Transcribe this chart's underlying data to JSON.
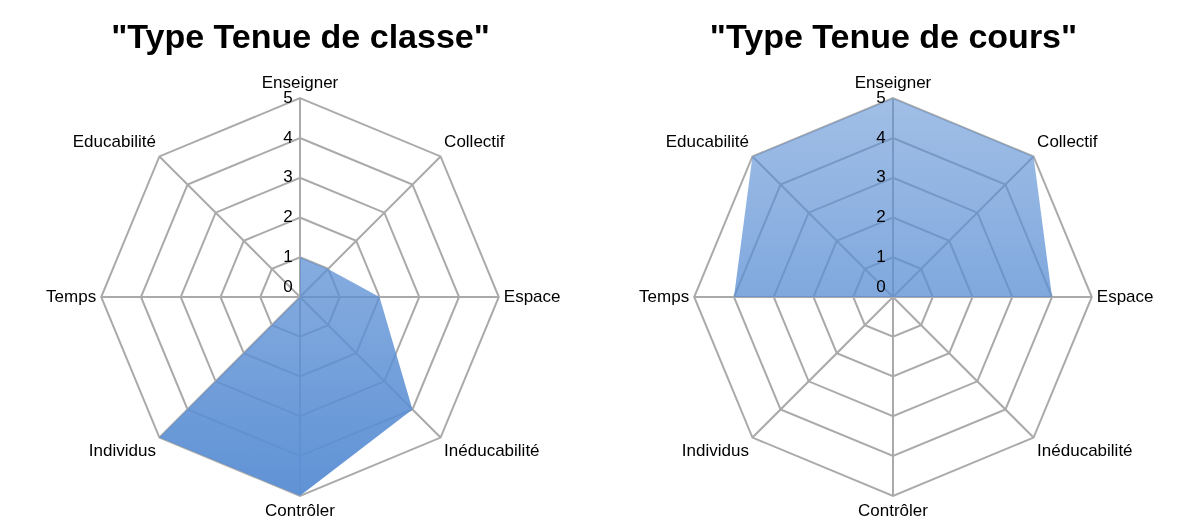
{
  "chart_data": [
    {
      "type": "radar",
      "title": "\"Type Tenue de classe\"",
      "categories": [
        "Enseigner",
        "Collectif",
        "Espace",
        "Inéducabilité",
        "Contrôler",
        "Individus",
        "Temps",
        "Educabilité"
      ],
      "series": [
        {
          "color": "#5b8fd4",
          "values": [
            1,
            1,
            2,
            4,
            5,
            5,
            0,
            0
          ]
        }
      ],
      "ylim": [
        0,
        5
      ],
      "yticks": [
        0,
        1,
        2,
        3,
        4,
        5
      ],
      "grid": true
    },
    {
      "type": "radar",
      "title": "\"Type Tenue de cours\"",
      "categories": [
        "Enseigner",
        "Collectif",
        "Espace",
        "Inéducabilité",
        "Contrôler",
        "Individus",
        "Temps",
        "Educabilité"
      ],
      "series": [
        {
          "color": "#5b8fd4",
          "values": [
            5,
            5,
            4,
            0,
            2,
            0,
            4,
            5
          ]
        }
      ],
      "ylim": [
        0,
        5
      ],
      "yticks": [
        0,
        1,
        2,
        3,
        4,
        5
      ],
      "grid": true
    }
  ]
}
